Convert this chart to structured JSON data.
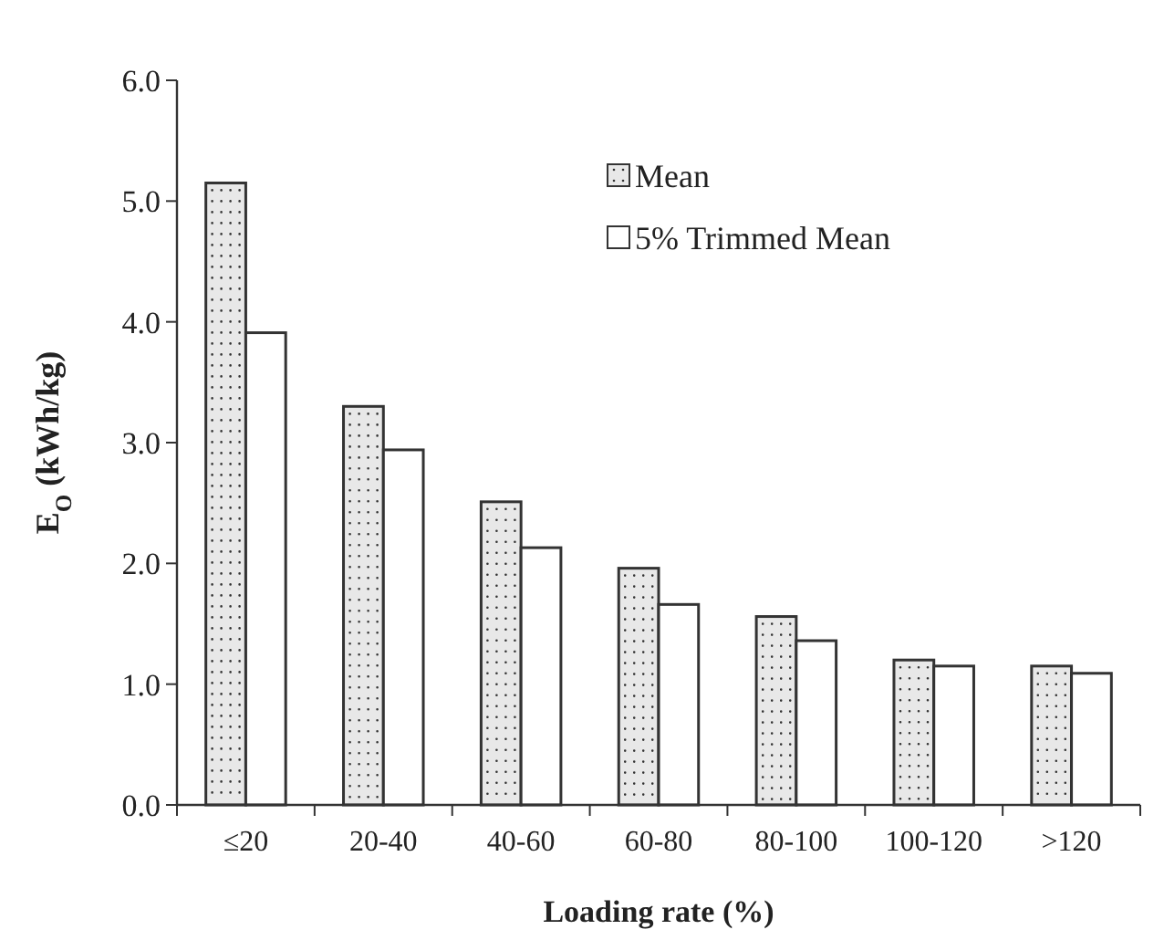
{
  "chart_data": {
    "type": "bar",
    "xlabel": "Loading rate (%)",
    "ylabel": "E$_{O}$ (kWh/kg)",
    "categories": [
      "≤20",
      "20-40",
      "40-60",
      "60-80",
      "80-100",
      "100-120",
      ">120"
    ],
    "series": [
      {
        "name": "Mean",
        "color": "#e8e8e8",
        "values": [
          5.15,
          3.3,
          2.51,
          1.96,
          1.56,
          1.2,
          1.15
        ]
      },
      {
        "name": "5% Trimmed Mean",
        "color": "#ffffff",
        "values": [
          3.91,
          2.94,
          2.13,
          1.66,
          1.36,
          1.15,
          1.09
        ]
      }
    ],
    "ylim": [
      0,
      6
    ],
    "yticks": [
      {
        "value": 0,
        "label": "0.0"
      },
      {
        "value": 1,
        "label": "1.0"
      },
      {
        "value": 2,
        "label": "2.0"
      },
      {
        "value": 3,
        "label": "3.0"
      },
      {
        "value": 4,
        "label": "4.0"
      },
      {
        "value": 5,
        "label": "5.0"
      },
      {
        "value": 6,
        "label": "6.0"
      }
    ],
    "grid": false,
    "legend": "top right"
  }
}
